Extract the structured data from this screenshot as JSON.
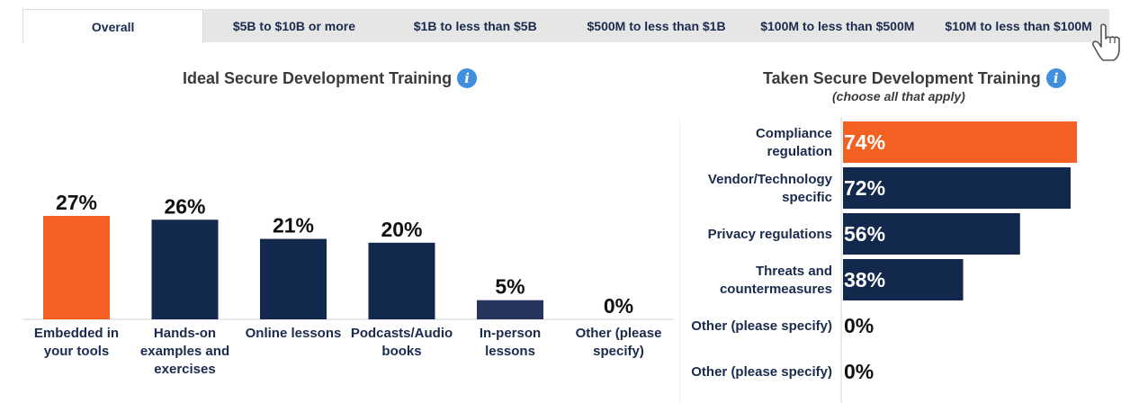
{
  "tabs": [
    {
      "label": "Overall",
      "active": true
    },
    {
      "label": "$5B to $10B or more",
      "active": false
    },
    {
      "label": "$1B to less than $5B",
      "active": false
    },
    {
      "label": "$500M to less than $1B",
      "active": false
    },
    {
      "label": "$100M to less than $500M",
      "active": false
    },
    {
      "label": "$10M to less than $100M",
      "active": false
    }
  ],
  "colors": {
    "highlight": "#f26122",
    "bar": "#13284d",
    "bar_alt": "#27345e",
    "label": "#1a2b4d",
    "axis": "#d0d0d0"
  },
  "icons": {
    "info": "info-icon",
    "cursor": "hand-pointer-icon"
  },
  "chart_data": [
    {
      "type": "bar",
      "title": "Ideal Secure Development Training",
      "categories": [
        [
          "Embedded in",
          "your tools"
        ],
        [
          "Hands-on",
          "examples and",
          "exercises"
        ],
        [
          "Online lessons"
        ],
        [
          "Podcasts/Audio",
          "books"
        ],
        [
          "In-person",
          "lessons"
        ],
        [
          "Other (please",
          "specify)"
        ]
      ],
      "values": [
        27,
        26,
        21,
        20,
        5,
        0
      ],
      "value_labels": [
        "27%",
        "26%",
        "21%",
        "20%",
        "5%",
        "0%"
      ],
      "highlight_index": 0,
      "ylim": [
        0,
        30
      ]
    },
    {
      "type": "bar",
      "orientation": "horizontal",
      "title": "Taken Secure Development Training",
      "subtitle": "(choose all that apply)",
      "categories": [
        [
          "Compliance",
          "regulation"
        ],
        [
          "Vendor/Technology",
          "specific"
        ],
        [
          "Privacy regulations"
        ],
        [
          "Threats and",
          "countermeasures"
        ],
        [
          "Other (please specify)"
        ],
        [
          "Other (please specify)"
        ]
      ],
      "values": [
        74,
        72,
        56,
        38,
        0,
        0
      ],
      "value_labels": [
        "74%",
        "72%",
        "56%",
        "38%",
        "0%",
        "0%"
      ],
      "highlight_index": 0,
      "xlim": [
        0,
        100
      ]
    }
  ]
}
